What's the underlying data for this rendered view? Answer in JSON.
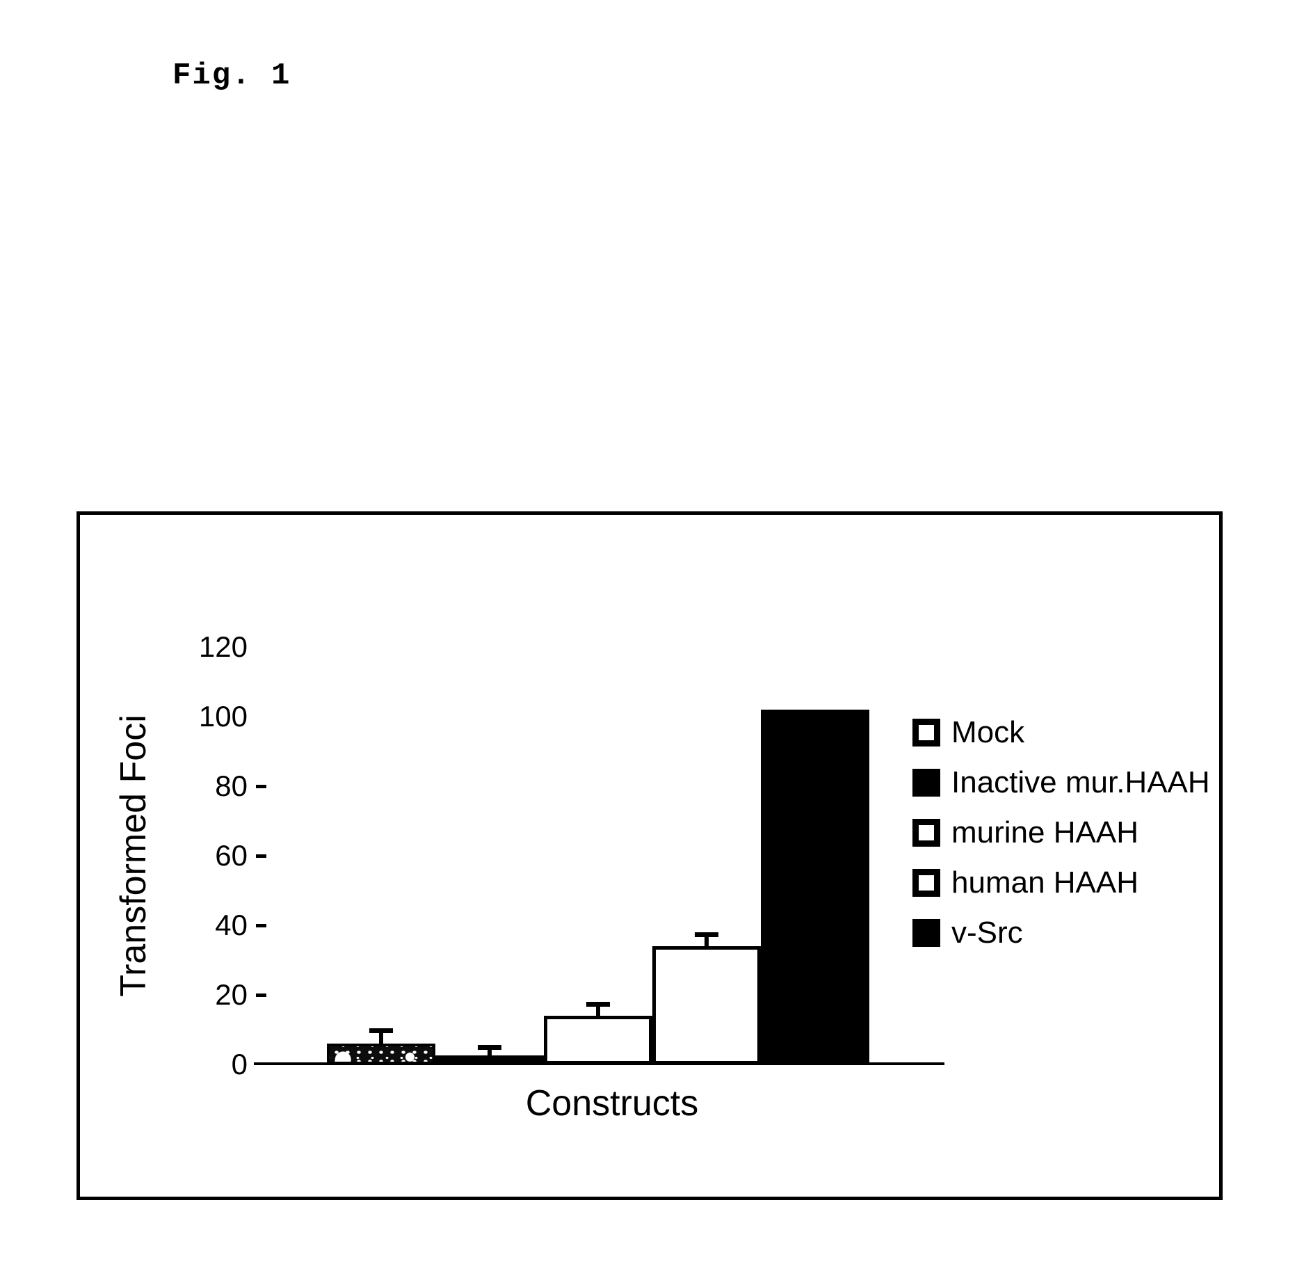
{
  "figure": {
    "label": "Fig. 1"
  },
  "chart_data": {
    "type": "bar",
    "title": "",
    "xlabel": "Constructs",
    "ylabel": "Transformed Foci",
    "ylim": [
      0,
      120
    ],
    "yticks": [
      0,
      20,
      40,
      60,
      80,
      100,
      120
    ],
    "grid": false,
    "legend_position": "right-inside",
    "categories": [
      "Mock",
      "Inactive mur.HAAH",
      "murine HAAH",
      "human HAAH",
      "v-Src"
    ],
    "series": [
      {
        "name": "Mock",
        "value": 6,
        "error": 3,
        "fill": "stipple"
      },
      {
        "name": "Inactive mur.HAAH",
        "value": 2.5,
        "error": 1.5,
        "fill": "black"
      },
      {
        "name": "murine HAAH",
        "value": 14,
        "error": 2.5,
        "fill": "white"
      },
      {
        "name": "human HAAH",
        "value": 34,
        "error": 2.5,
        "fill": "white"
      },
      {
        "name": "v-Src",
        "value": 102,
        "error": 0,
        "fill": "black"
      }
    ]
  },
  "legend": {
    "items": [
      {
        "label": "Mock",
        "swatch": "hollow"
      },
      {
        "label": "Inactive mur.HAAH",
        "swatch": "solid"
      },
      {
        "label": "murine HAAH",
        "swatch": "hollow"
      },
      {
        "label": "human HAAH",
        "swatch": "hollow"
      },
      {
        "label": "v-Src",
        "swatch": "solid"
      }
    ]
  },
  "colors": {
    "ink": "#000000",
    "paper": "#ffffff"
  }
}
